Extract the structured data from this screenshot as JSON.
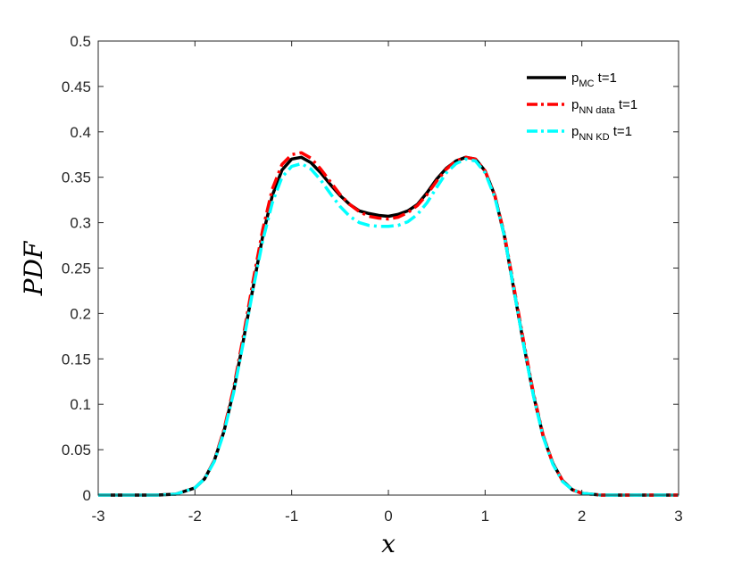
{
  "chart_data": {
    "type": "line",
    "title": "",
    "xlabel": "x",
    "ylabel": "PDF",
    "xlim": [
      -3,
      3
    ],
    "ylim": [
      0,
      0.5
    ],
    "xticks": [
      "-3",
      "-2",
      "-1",
      "0",
      "1",
      "2",
      "3"
    ],
    "yticks": [
      "0",
      "0.05",
      "0.1",
      "0.15",
      "0.2",
      "0.25",
      "0.3",
      "0.35",
      "0.4",
      "0.45",
      "0.5"
    ],
    "grid": false,
    "legend": "top-right",
    "x": [
      -3.0,
      -2.8,
      -2.6,
      -2.4,
      -2.2,
      -2.0,
      -1.9,
      -1.8,
      -1.7,
      -1.6,
      -1.5,
      -1.4,
      -1.3,
      -1.2,
      -1.1,
      -1.0,
      -0.9,
      -0.8,
      -0.7,
      -0.6,
      -0.5,
      -0.4,
      -0.3,
      -0.2,
      -0.1,
      0.0,
      0.1,
      0.2,
      0.3,
      0.4,
      0.5,
      0.6,
      0.7,
      0.8,
      0.9,
      1.0,
      1.1,
      1.2,
      1.3,
      1.4,
      1.5,
      1.6,
      1.7,
      1.8,
      1.9,
      2.0,
      2.2,
      2.4,
      2.6,
      2.8,
      3.0
    ],
    "series": [
      {
        "name_main": "p",
        "name_sub": "MC",
        "name_suffix": " t=1",
        "color": "#000000",
        "dash": "solid",
        "values": [
          0.0,
          0.0,
          0.0,
          0.0,
          0.001,
          0.008,
          0.018,
          0.038,
          0.07,
          0.115,
          0.17,
          0.228,
          0.285,
          0.33,
          0.358,
          0.37,
          0.372,
          0.366,
          0.355,
          0.342,
          0.33,
          0.32,
          0.313,
          0.31,
          0.308,
          0.307,
          0.309,
          0.313,
          0.32,
          0.333,
          0.348,
          0.36,
          0.368,
          0.372,
          0.37,
          0.357,
          0.33,
          0.285,
          0.225,
          0.165,
          0.11,
          0.065,
          0.035,
          0.016,
          0.006,
          0.002,
          0.0,
          0.0,
          0.0,
          0.0,
          0.0
        ]
      },
      {
        "name_main": "p",
        "name_sub": "NN data",
        "name_suffix": " t=1",
        "color": "#ff0000",
        "dash": "dashdot",
        "values": [
          0.0,
          0.0,
          0.0,
          0.0,
          0.001,
          0.008,
          0.018,
          0.038,
          0.072,
          0.118,
          0.175,
          0.235,
          0.292,
          0.337,
          0.364,
          0.375,
          0.377,
          0.371,
          0.359,
          0.345,
          0.331,
          0.32,
          0.312,
          0.307,
          0.305,
          0.304,
          0.306,
          0.311,
          0.319,
          0.331,
          0.346,
          0.359,
          0.368,
          0.372,
          0.37,
          0.357,
          0.33,
          0.287,
          0.228,
          0.168,
          0.112,
          0.066,
          0.035,
          0.016,
          0.006,
          0.002,
          0.0,
          0.0,
          0.0,
          0.0,
          0.0
        ]
      },
      {
        "name_main": "p",
        "name_sub": "NN KD",
        "name_suffix": " t=1",
        "color": "#00ffff",
        "dash": "dashdot",
        "values": [
          0.0,
          0.0,
          0.0,
          0.0,
          0.001,
          0.008,
          0.018,
          0.037,
          0.069,
          0.113,
          0.168,
          0.226,
          0.28,
          0.322,
          0.35,
          0.362,
          0.365,
          0.359,
          0.347,
          0.332,
          0.318,
          0.307,
          0.3,
          0.297,
          0.296,
          0.296,
          0.297,
          0.301,
          0.309,
          0.322,
          0.339,
          0.355,
          0.365,
          0.37,
          0.368,
          0.355,
          0.328,
          0.285,
          0.225,
          0.164,
          0.109,
          0.064,
          0.034,
          0.015,
          0.006,
          0.002,
          0.0,
          0.0,
          0.0,
          0.0,
          0.0
        ]
      }
    ]
  }
}
